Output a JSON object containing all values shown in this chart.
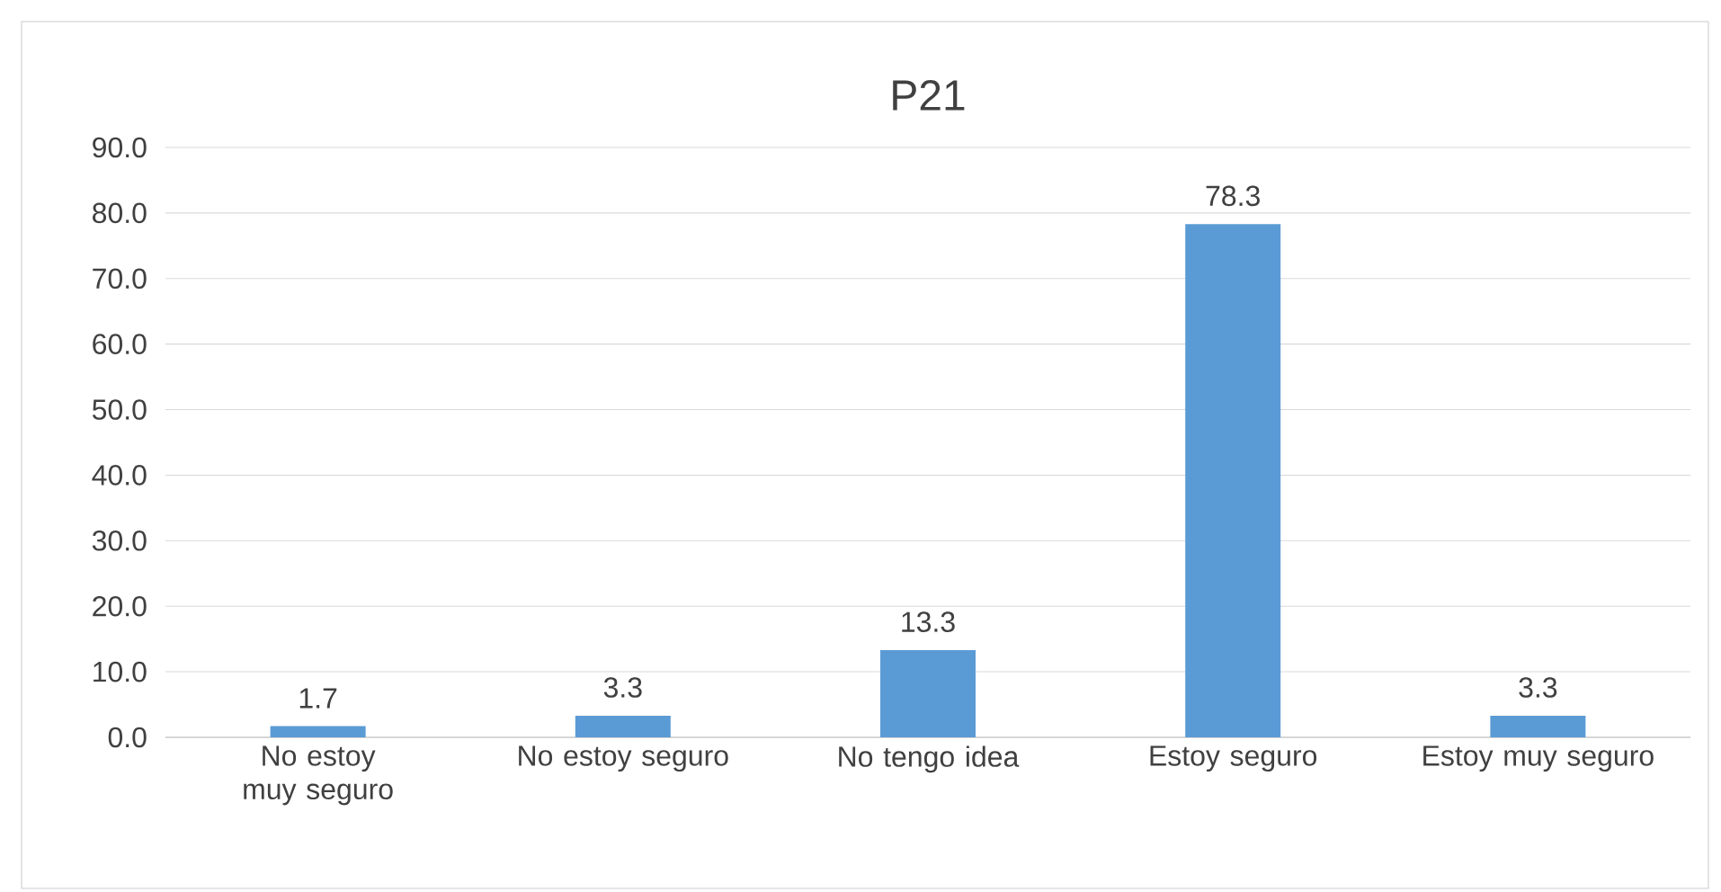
{
  "chart_data": {
    "type": "bar",
    "title": "P21",
    "categories": [
      "No estoy muy seguro",
      "No estoy seguro",
      "No tengo idea",
      "Estoy seguro",
      "Estoy muy seguro"
    ],
    "values": [
      1.7,
      3.3,
      13.3,
      78.3,
      3.3
    ],
    "color": "#5b9bd5",
    "ylim": [
      0,
      90
    ],
    "yticks": [
      {
        "value": 0,
        "label": "0.0"
      },
      {
        "value": 10,
        "label": "10.0"
      },
      {
        "value": 20,
        "label": "20.0"
      },
      {
        "value": 30,
        "label": "30.0"
      },
      {
        "value": 40,
        "label": "40.0"
      },
      {
        "value": 50,
        "label": "50.0"
      },
      {
        "value": 60,
        "label": "60.0"
      },
      {
        "value": 70,
        "label": "70.0"
      },
      {
        "value": 80,
        "label": "80.0"
      },
      {
        "value": 90,
        "label": "90.0"
      }
    ],
    "grid": "y",
    "data_labels": true
  }
}
